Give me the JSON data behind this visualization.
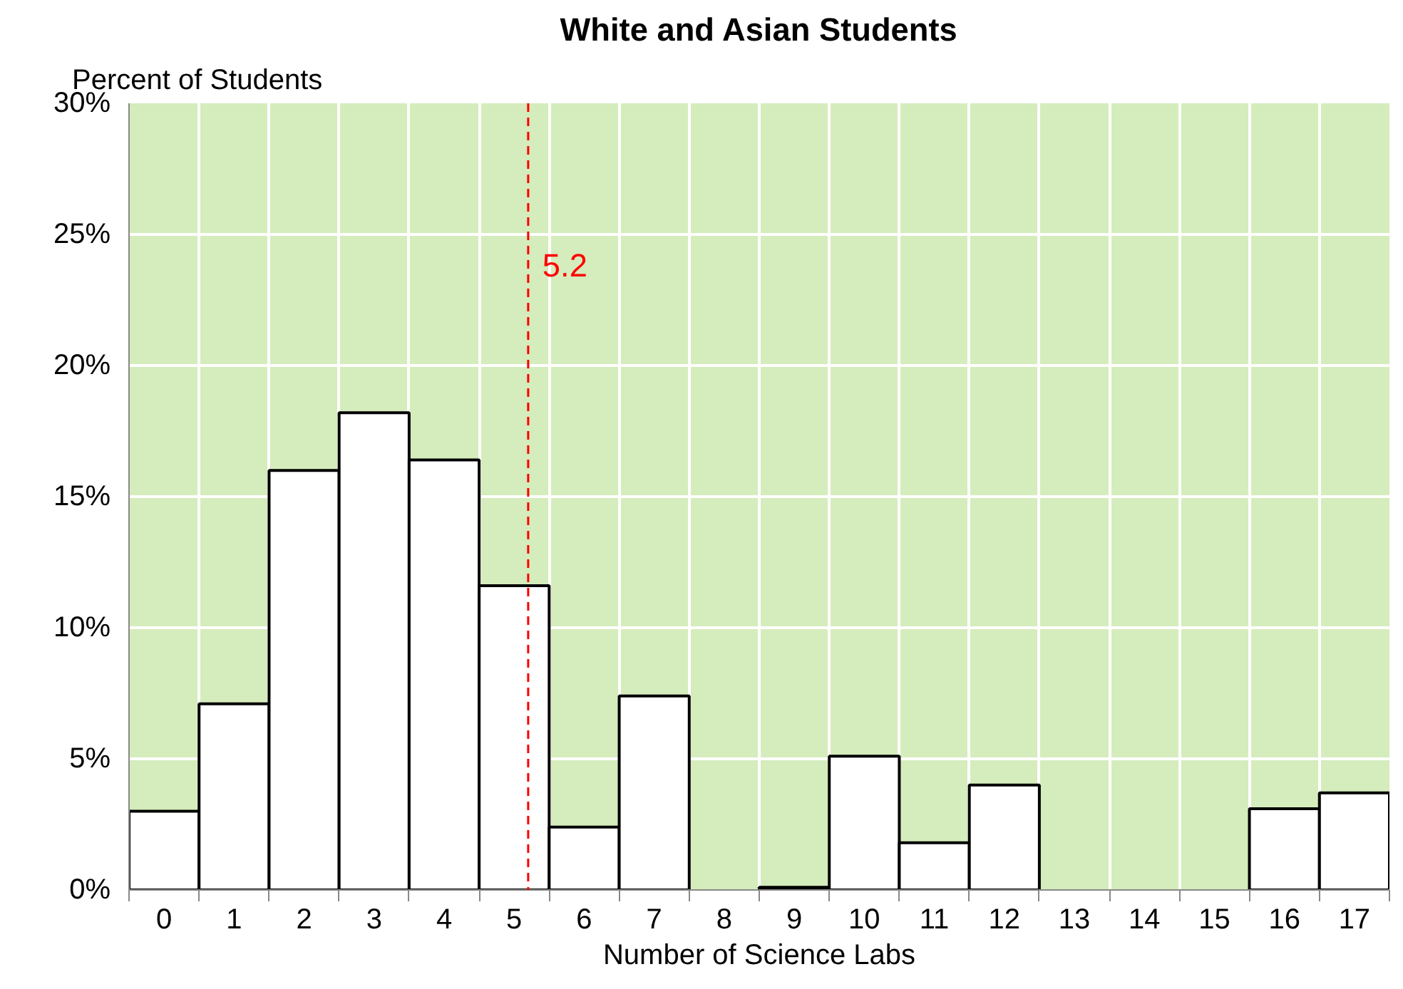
{
  "chart_data": {
    "type": "bar",
    "title": "White and Asian Students",
    "xlabel": "Number of Science Labs",
    "ylabel": "Percent of Students",
    "x": [
      0,
      1,
      2,
      3,
      4,
      5,
      6,
      7,
      8,
      9,
      10,
      11,
      12,
      13,
      14,
      15,
      16,
      17
    ],
    "values": [
      3.0,
      7.1,
      16.0,
      18.2,
      16.4,
      11.6,
      2.4,
      7.4,
      0,
      0.1,
      5.1,
      1.8,
      4.0,
      0,
      0,
      0,
      3.1,
      3.7
    ],
    "color": "#ffffff",
    "xlim": [
      -0.5,
      17.5
    ],
    "xticks": [
      0,
      1,
      2,
      3,
      4,
      5,
      6,
      7,
      8,
      9,
      10,
      11,
      12,
      13,
      14,
      15,
      16,
      17
    ],
    "ylim": [
      0,
      30
    ],
    "yticks": [
      {
        "value": 0,
        "label": "0%"
      },
      {
        "value": 5,
        "label": "5%"
      },
      {
        "value": 10,
        "label": "10%"
      },
      {
        "value": 15,
        "label": "15%"
      },
      {
        "value": 20,
        "label": "20%"
      },
      {
        "value": 25,
        "label": "25%"
      },
      {
        "value": 30,
        "label": "30%"
      }
    ],
    "ref_lines": [
      {
        "axis": "x",
        "value": 5.2,
        "label": "5.2",
        "color": "#ff0000",
        "line_style": "dashed"
      }
    ],
    "grid": true
  }
}
